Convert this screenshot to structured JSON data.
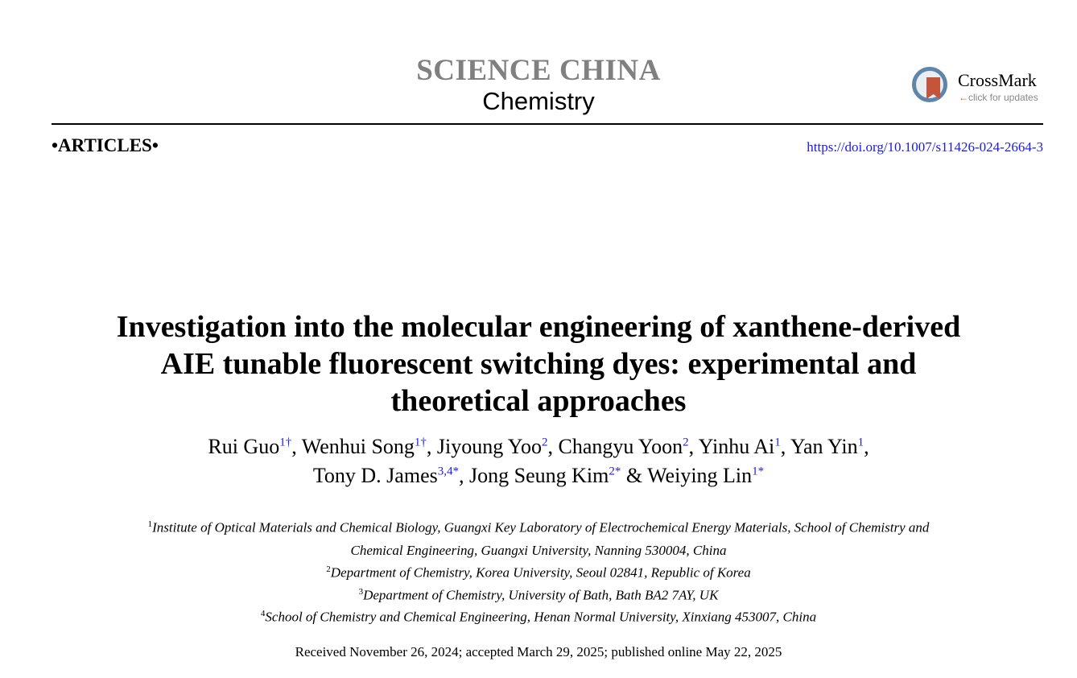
{
  "header": {
    "journal": "SCIENCE CHINA",
    "subject": "Chemistry",
    "section": "•ARTICLES•",
    "doi": "https://doi.org/10.1007/s11426-024-2664-3",
    "crossmark": {
      "label": "CrossMark",
      "sub": "click for updates",
      "arrow": "←"
    }
  },
  "title_lines": [
    "Investigation into the molecular engineering of xanthene-derived",
    "AIE tunable fluorescent switching dyes: experimental and",
    "theoretical approaches"
  ],
  "authors": [
    {
      "name": "Rui Guo",
      "sup": "1†",
      "sep": ", "
    },
    {
      "name": "Wenhui Song",
      "sup": "1†",
      "sep": ", "
    },
    {
      "name": "Jiyoung Yoo",
      "sup": "2",
      "sep": ", "
    },
    {
      "name": "Changyu Yoon",
      "sup": "2",
      "sep": ", "
    },
    {
      "name": "Yinhu Ai",
      "sup": "1",
      "sep": ", "
    },
    {
      "name": "Yan Yin",
      "sup": "1",
      "sep": ","
    },
    {
      "name": "Tony D. James",
      "sup": "3,4*",
      "sep": ", "
    },
    {
      "name": "Jong Seung Kim",
      "sup": "2*",
      "sep": " & "
    },
    {
      "name": "Weiying Lin",
      "sup": "1*",
      "sep": ""
    }
  ],
  "affiliations": [
    {
      "num": "1",
      "text": "Institute of Optical Materials and Chemical Biology, Guangxi Key Laboratory of Electrochemical Energy Materials, School of Chemistry and",
      "cont": "Chemical Engineering, Guangxi University, Nanning 530004, China"
    },
    {
      "num": "2",
      "text": "Department of Chemistry, Korea University, Seoul 02841, Republic of Korea"
    },
    {
      "num": "3",
      "text": "Department of Chemistry, University of Bath, Bath BA2 7AY, UK"
    },
    {
      "num": "4",
      "text": "School of Chemistry and Chemical Engineering, Henan Normal University, Xinxiang 453007, China"
    }
  ],
  "received": "Received November 26, 2024; accepted March 29, 2025; published online May 22, 2025"
}
